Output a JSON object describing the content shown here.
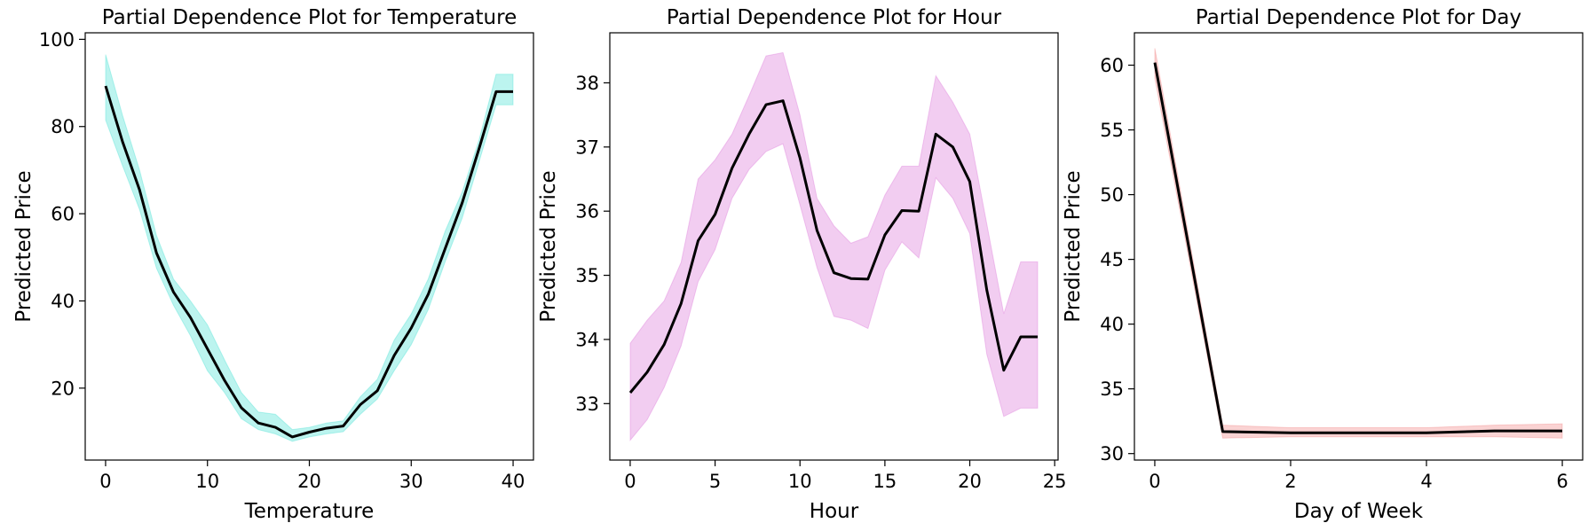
{
  "chart_data": [
    {
      "type": "line",
      "title": "Partial Dependence Plot for Temperature",
      "xlabel": "Temperature",
      "ylabel": "Predicted Price",
      "xlim": [
        -2,
        42
      ],
      "ylim": [
        3.5,
        101.5
      ],
      "xticks": [
        0,
        10,
        20,
        30,
        40
      ],
      "yticks": [
        20,
        40,
        60,
        80,
        100
      ],
      "grid": false,
      "line_color": "#000000",
      "band_color": "#40E0D0",
      "x": [
        0,
        1.67,
        3.33,
        5,
        6.67,
        8.33,
        10,
        11.67,
        13.33,
        15,
        16.67,
        18.33,
        20,
        21.67,
        23.33,
        25,
        26.67,
        28.33,
        30,
        31.67,
        33.33,
        35,
        36.67,
        38.33,
        40
      ],
      "series": [
        {
          "values": [
            89.3,
            76.5,
            65.5,
            51,
            42,
            36.2,
            29,
            21.8,
            15.5,
            12,
            11,
            8.8,
            9.9,
            10.8,
            11.3,
            16.2,
            19.4,
            27.5,
            33.8,
            41.5,
            52,
            62.5,
            75,
            88,
            88
          ]
        },
        {
          "values": [
            96.5,
            82.5,
            70,
            55,
            45,
            40,
            34.5,
            26.5,
            19,
            14.5,
            14,
            10.5,
            11,
            12,
            12.5,
            18,
            22,
            31,
            37,
            45,
            56,
            65,
            77,
            92,
            92
          ]
        },
        {
          "values": [
            81.5,
            71,
            61,
            47.5,
            39,
            32,
            24,
            19,
            13,
            10.5,
            9.5,
            7.8,
            8.8,
            9.5,
            10,
            14,
            17.5,
            24,
            30,
            38,
            49,
            59,
            72,
            85,
            85
          ]
        }
      ]
    },
    {
      "type": "line",
      "title": "Partial Dependence Plot for Hour",
      "xlabel": "Hour",
      "ylabel": "Predicted Price",
      "xlim": [
        -1.2,
        25.2
      ],
      "ylim": [
        32.12,
        38.78
      ],
      "xticks": [
        0,
        5,
        10,
        15,
        20,
        25
      ],
      "yticks": [
        33,
        34,
        35,
        36,
        37,
        38
      ],
      "grid": false,
      "line_color": "#000000",
      "band_color": "#DA70D6",
      "x": [
        0,
        1,
        2,
        3,
        4,
        5,
        6,
        7,
        8,
        9,
        10,
        11,
        12,
        13,
        14,
        15,
        16,
        17,
        18,
        19,
        20,
        21,
        22,
        23,
        24
      ],
      "series": [
        {
          "values": [
            33.17,
            33.49,
            33.92,
            34.56,
            35.54,
            35.95,
            36.67,
            37.2,
            37.66,
            37.72,
            36.83,
            35.7,
            35.04,
            34.95,
            34.94,
            35.63,
            36.01,
            36.0,
            37.2,
            37.0,
            36.46,
            34.77,
            33.52,
            34.04,
            34.04
          ]
        },
        {
          "values": [
            33.94,
            34.3,
            34.6,
            35.2,
            36.5,
            36.8,
            37.2,
            37.8,
            38.42,
            38.47,
            37.5,
            36.2,
            35.77,
            35.5,
            35.6,
            36.25,
            36.7,
            36.7,
            38.11,
            37.7,
            37.2,
            35.8,
            34.4,
            35.21,
            35.21
          ]
        },
        {
          "values": [
            32.43,
            32.75,
            33.25,
            33.9,
            34.9,
            35.4,
            36.2,
            36.65,
            36.93,
            37.05,
            36.1,
            35.12,
            34.36,
            34.3,
            34.17,
            35.08,
            35.52,
            35.27,
            36.52,
            36.2,
            35.65,
            33.77,
            32.8,
            32.93,
            32.93
          ]
        }
      ]
    },
    {
      "type": "line",
      "title": "Partial Dependence Plot for Day",
      "xlabel": "Day of Week",
      "ylabel": "Predicted Price",
      "xlim": [
        -0.3,
        6.3
      ],
      "ylim": [
        29.5,
        62.5
      ],
      "xticks": [
        0,
        2,
        4,
        6
      ],
      "yticks": [
        30,
        35,
        40,
        45,
        50,
        55,
        60
      ],
      "grid": false,
      "line_color": "#000000",
      "band_color": "#F08080",
      "x": [
        0,
        1,
        2,
        3,
        4,
        5,
        6
      ],
      "series": [
        {
          "values": [
            60.2,
            31.7,
            31.6,
            31.6,
            31.6,
            31.75,
            31.75
          ]
        },
        {
          "values": [
            61.3,
            32.2,
            32.0,
            32.0,
            32.0,
            32.2,
            32.3
          ]
        },
        {
          "values": [
            59.0,
            31.2,
            31.3,
            31.3,
            31.3,
            31.3,
            31.2
          ]
        }
      ]
    }
  ]
}
